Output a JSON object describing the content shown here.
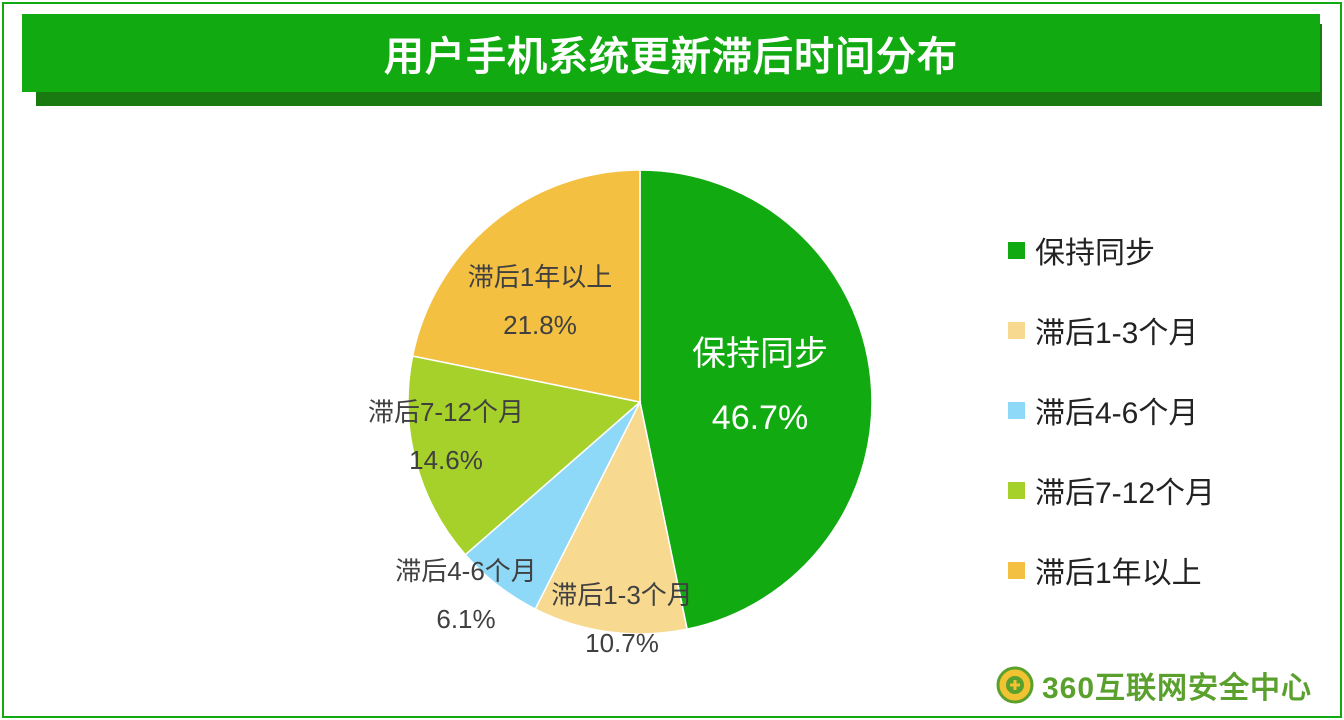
{
  "title": "用户手机系统更新滞后时间分布",
  "colors": {
    "frame": "#11aa11",
    "title_bar": "#11aa11",
    "title_shadow": "#1a7a12"
  },
  "chart_data": {
    "type": "pie",
    "start_angle_deg": 0,
    "direction": "clockwise",
    "slices": [
      {
        "label": "保持同步",
        "value": 46.7,
        "value_label": "46.7%",
        "color": "#11aa11"
      },
      {
        "label": "滞后1-3个月",
        "value": 10.7,
        "value_label": "10.7%",
        "color": "#f7d990"
      },
      {
        "label": "滞后4-6个月",
        "value": 6.1,
        "value_label": "6.1%",
        "color": "#8ed8f8"
      },
      {
        "label": "滞后7-12个月",
        "value": 14.6,
        "value_label": "14.6%",
        "color": "#a6d02a"
      },
      {
        "label": "滞后1年以上",
        "value": 21.8,
        "value_label": "21.8%",
        "color": "#f3c042"
      }
    ],
    "legend_position": "right"
  },
  "logo": {
    "text": "360互联网安全中心",
    "icon": "360-shield-logo-icon"
  }
}
